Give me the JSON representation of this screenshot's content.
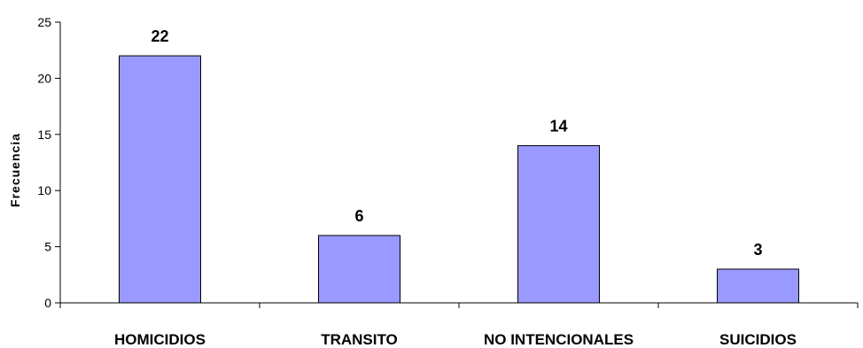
{
  "chart_data": {
    "type": "bar",
    "categories": [
      "HOMICIDIOS",
      "TRANSITO",
      "NO INTENCIONALES",
      "SUICIDIOS"
    ],
    "values": [
      22,
      6,
      14,
      3
    ],
    "data_labels": [
      "22",
      "6",
      "14",
      "3"
    ],
    "title": "",
    "xlabel": "",
    "ylabel": "Frecuencia",
    "ylim": [
      0,
      25
    ],
    "yticks": [
      0,
      5,
      10,
      15,
      20,
      25
    ],
    "grid": false,
    "legend": "none",
    "colors": {
      "bar_fill": "#9999ff",
      "bar_stroke": "#000000",
      "axis": "#000000"
    }
  }
}
